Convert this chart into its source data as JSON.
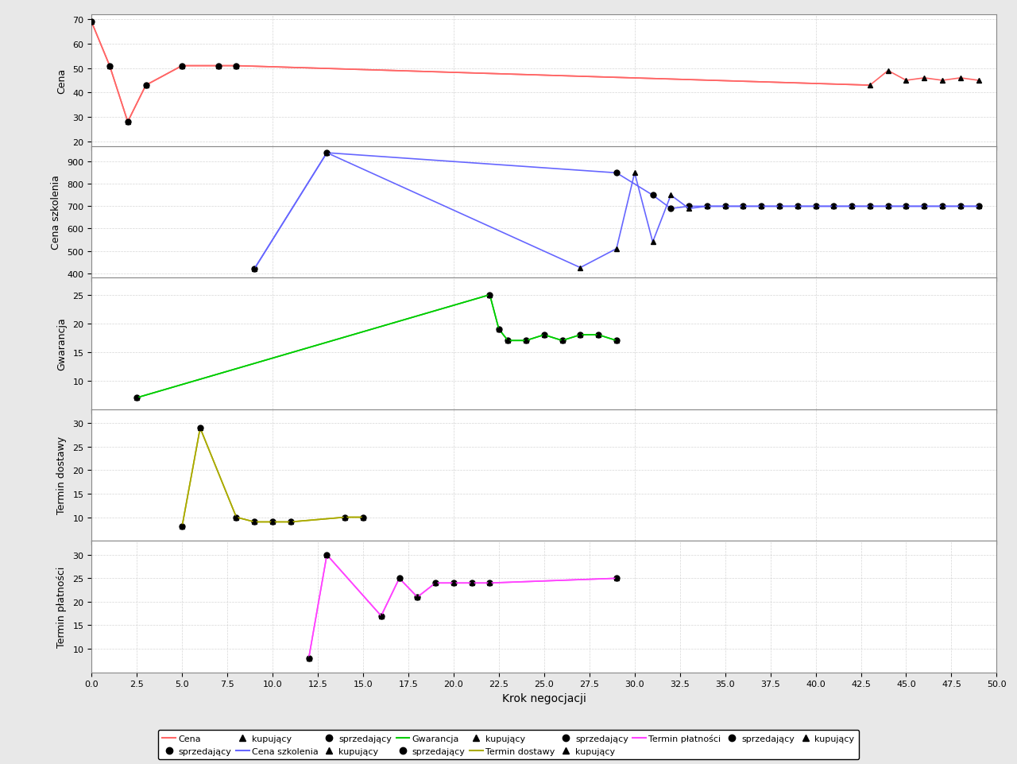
{
  "title": "",
  "xlabel": "Krok negocjacji",
  "background_color": "#f0f0f0",
  "plot_bg": "#ffffff",
  "grid_color": "#cccccc",
  "cena": {
    "label": "Cena",
    "color": "#ff6666",
    "seller": {
      "x": [
        0,
        1,
        2,
        3,
        5,
        7,
        8
      ],
      "y": [
        69,
        51,
        28,
        43,
        51,
        51,
        51
      ]
    },
    "buyer": {
      "x": [
        0,
        1,
        2,
        3,
        5,
        7,
        8,
        43,
        44,
        45,
        46,
        47,
        48,
        49
      ],
      "y": [
        69,
        51,
        28,
        43,
        51,
        51,
        51,
        43,
        49,
        45,
        46,
        45,
        46,
        45
      ]
    },
    "line_seller": {
      "x": [
        8,
        43
      ],
      "y": [
        51,
        43
      ]
    },
    "ylim": [
      18,
      72
    ],
    "yticks": [
      20,
      30,
      40,
      50,
      60,
      70
    ]
  },
  "cena_szkolenia": {
    "label": "Cena szkolenia",
    "color": "#6666ff",
    "seller": {
      "x": [
        9,
        13,
        29,
        31,
        32,
        33,
        34,
        35,
        36,
        37,
        38,
        39,
        40,
        41,
        42,
        43,
        44,
        45,
        46,
        47,
        48,
        49
      ],
      "y": [
        420,
        940,
        850,
        750,
        690,
        700,
        700,
        700,
        700,
        700,
        700,
        700,
        700,
        700,
        700,
        700,
        700,
        700,
        700,
        700,
        700,
        700
      ]
    },
    "buyer": {
      "x": [
        9,
        13,
        27,
        29,
        30,
        31,
        32,
        33,
        34,
        35,
        36,
        37,
        38,
        39,
        40,
        41,
        42,
        43,
        44,
        45,
        46,
        47,
        48,
        49
      ],
      "y": [
        420,
        940,
        425,
        510,
        850,
        540,
        750,
        690,
        700,
        700,
        700,
        700,
        700,
        700,
        700,
        700,
        700,
        700,
        700,
        700,
        700,
        700,
        700,
        700
      ]
    },
    "ylim": [
      380,
      970
    ],
    "yticks": [
      400,
      500,
      600,
      700,
      800,
      900
    ]
  },
  "gwarancja": {
    "label": "Gwarancja",
    "color": "#00cc00",
    "seller": {
      "x": [
        2.5,
        22,
        22.5,
        23,
        24,
        25,
        26,
        27,
        28,
        29
      ],
      "y": [
        7,
        25,
        19,
        17,
        17,
        18,
        17,
        18,
        18,
        17
      ]
    },
    "buyer": {
      "x": [
        2.5,
        22,
        22.5,
        23,
        24,
        25,
        26,
        27,
        28,
        29
      ],
      "y": [
        7,
        25,
        19,
        17,
        17,
        18,
        17,
        18,
        18,
        17
      ]
    },
    "ylim": [
      5,
      28
    ],
    "yticks": [
      10,
      15,
      20,
      25
    ]
  },
  "termin_dostawy": {
    "label": "Termin dostawy",
    "color": "#aaaa00",
    "seller": {
      "x": [
        5,
        6,
        8,
        9,
        10,
        11,
        14,
        15
      ],
      "y": [
        8,
        29,
        10,
        9,
        9,
        9,
        10,
        10
      ]
    },
    "buyer": {
      "x": [
        5,
        6,
        8,
        9,
        10,
        11,
        14,
        15
      ],
      "y": [
        8,
        29,
        10,
        9,
        9,
        9,
        10,
        10
      ]
    },
    "ylim": [
      5,
      33
    ],
    "yticks": [
      10,
      15,
      20,
      25,
      30
    ]
  },
  "termin_platnosci": {
    "label": "Termin płatności",
    "color": "#ff44ff",
    "seller": {
      "x": [
        12,
        13,
        16,
        17,
        18,
        19,
        20,
        21,
        22,
        29
      ],
      "y": [
        8,
        30,
        17,
        25,
        21,
        24,
        24,
        24,
        24,
        25
      ]
    },
    "buyer": {
      "x": [
        12,
        13,
        16,
        17,
        18,
        19,
        20,
        21,
        22,
        29
      ],
      "y": [
        8,
        30,
        17,
        25,
        21,
        24,
        24,
        24,
        24,
        25
      ]
    },
    "ylim": [
      5,
      33
    ],
    "yticks": [
      10,
      15,
      20,
      25,
      30
    ]
  },
  "xlim": [
    0,
    50
  ],
  "xticks": [
    0.0,
    2.5,
    5.0,
    7.5,
    10.0,
    12.5,
    15.0,
    17.5,
    20.0,
    22.5,
    25.0,
    27.5,
    30.0,
    32.5,
    35.0,
    37.5,
    40.0,
    42.5,
    45.0,
    47.5,
    50.0
  ]
}
